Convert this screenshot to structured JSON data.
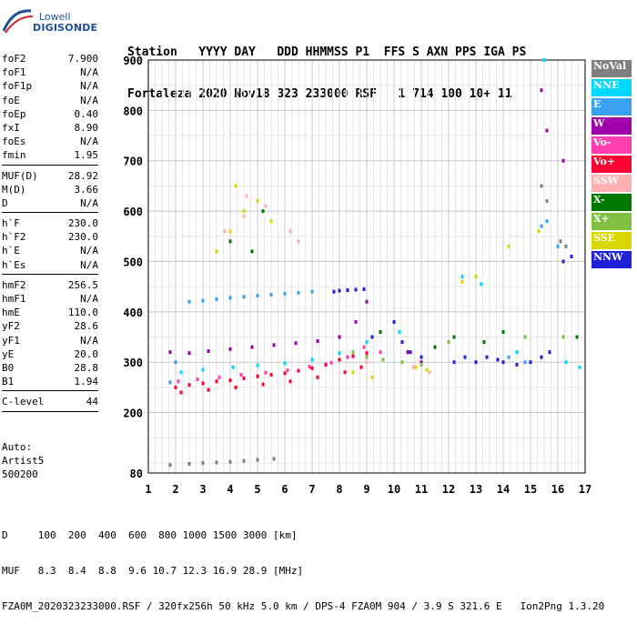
{
  "logo": {
    "line1": "Lowell",
    "line2": "DIGISONDE"
  },
  "header": {
    "line1": "Station   YYYY DAY   DDD HHMMSS P1  FFS S AXN PPS IGA PS",
    "line2": "Fortaleza 2020 Nov18 323 233000 RSF   1 714 100 10+ 11"
  },
  "params_groups": [
    [
      [
        "foF2",
        "7.900"
      ],
      [
        "foF1",
        "N/A"
      ],
      [
        "foF1p",
        "N/A"
      ],
      [
        "foE",
        "N/A"
      ],
      [
        "foEp",
        "0.40"
      ],
      [
        "fxI",
        "8.90"
      ],
      [
        "foEs",
        "N/A"
      ],
      [
        "fmin",
        "1.95"
      ]
    ],
    [
      [
        "MUF(D)",
        "28.92"
      ],
      [
        "M(D)",
        "3.66"
      ],
      [
        "D",
        "N/A"
      ]
    ],
    [
      [
        "h`F",
        "230.0"
      ],
      [
        "h`F2",
        "230.0"
      ],
      [
        "h`E",
        "N/A"
      ],
      [
        "h`Es",
        "N/A"
      ]
    ],
    [
      [
        "hmF2",
        "256.5"
      ],
      [
        "hmF1",
        "N/A"
      ],
      [
        "hmE",
        "110.0"
      ],
      [
        "yF2",
        "28.6"
      ],
      [
        "yF1",
        "N/A"
      ],
      [
        "yE",
        "20.0"
      ],
      [
        "B0",
        "28.8"
      ],
      [
        "B1",
        "1.94"
      ]
    ],
    [
      [
        "C-level",
        "44"
      ]
    ]
  ],
  "extra": {
    "line1": "Auto:",
    "line2": "Artist5",
    "line3": "500200"
  },
  "legend": [
    {
      "label": "NoVal",
      "color": "#7f7f7f"
    },
    {
      "label": "NNE",
      "color": "#00d8ff"
    },
    {
      "label": "E",
      "color": "#3aa0f0"
    },
    {
      "label": "W",
      "color": "#a000a8"
    },
    {
      "label": "Vo-",
      "color": "#ff3fb0"
    },
    {
      "label": "Vo+",
      "color": "#ff0030"
    },
    {
      "label": "SSW",
      "color": "#ffb0b0"
    },
    {
      "label": "X-",
      "color": "#007800"
    },
    {
      "label": "X+",
      "color": "#80c040"
    },
    {
      "label": "SSE",
      "color": "#d8d800"
    },
    {
      "label": "NNW",
      "color": "#2020d8"
    }
  ],
  "chart_data": {
    "type": "scatter",
    "xlim": [
      1,
      17
    ],
    "ylim": [
      80,
      900
    ],
    "xticks": [
      1,
      2,
      3,
      4,
      5,
      6,
      7,
      8,
      9,
      10,
      11,
      12,
      13,
      14,
      15,
      16,
      17
    ],
    "yticks": [
      80,
      200,
      300,
      400,
      500,
      600,
      700,
      800,
      900
    ],
    "grid": true,
    "series": [
      {
        "name": "Vo+",
        "color": "#ff0030",
        "points": [
          [
            2.0,
            250
          ],
          [
            2.5,
            255
          ],
          [
            3.0,
            258
          ],
          [
            3.5,
            262
          ],
          [
            4.0,
            264
          ],
          [
            4.5,
            268
          ],
          [
            5.0,
            272
          ],
          [
            5.5,
            275
          ],
          [
            6.0,
            278
          ],
          [
            6.5,
            283
          ],
          [
            7.0,
            288
          ],
          [
            7.5,
            295
          ],
          [
            8.0,
            305
          ],
          [
            8.5,
            312
          ],
          [
            9.0,
            318
          ],
          [
            2.2,
            240
          ],
          [
            3.2,
            245
          ],
          [
            4.2,
            250
          ],
          [
            5.2,
            256
          ],
          [
            6.2,
            262
          ],
          [
            7.2,
            270
          ],
          [
            8.2,
            280
          ],
          [
            8.8,
            290
          ]
        ]
      },
      {
        "name": "Vo-",
        "color": "#ff3fb0",
        "points": [
          [
            2.1,
            262
          ],
          [
            2.8,
            266
          ],
          [
            3.6,
            270
          ],
          [
            4.4,
            275
          ],
          [
            5.3,
            279
          ],
          [
            6.1,
            284
          ],
          [
            6.9,
            291
          ],
          [
            7.7,
            299
          ],
          [
            8.3,
            310
          ],
          [
            8.9,
            330
          ],
          [
            9.5,
            320
          ]
        ]
      },
      {
        "name": "W",
        "color": "#a000a8",
        "points": [
          [
            1.8,
            320
          ],
          [
            2.5,
            318
          ],
          [
            3.2,
            322
          ],
          [
            4.0,
            326
          ],
          [
            4.8,
            330
          ],
          [
            5.6,
            334
          ],
          [
            6.4,
            338
          ],
          [
            7.2,
            342
          ],
          [
            8.0,
            350
          ],
          [
            8.6,
            380
          ],
          [
            9.0,
            420
          ],
          [
            15.4,
            840
          ],
          [
            15.6,
            760
          ],
          [
            16.2,
            700
          ],
          [
            10.5,
            320
          ],
          [
            11.0,
            300
          ]
        ]
      },
      {
        "name": "NNE",
        "color": "#00d8ff",
        "points": [
          [
            2.2,
            280
          ],
          [
            3.0,
            285
          ],
          [
            4.1,
            290
          ],
          [
            5.0,
            294
          ],
          [
            6.0,
            298
          ],
          [
            7.0,
            305
          ],
          [
            8.0,
            318
          ],
          [
            9.0,
            340
          ],
          [
            10.2,
            360
          ],
          [
            12.5,
            470
          ],
          [
            13.2,
            455
          ],
          [
            14.5,
            320
          ],
          [
            15.5,
            900
          ],
          [
            16.3,
            300
          ],
          [
            16.8,
            290
          ]
        ]
      },
      {
        "name": "E",
        "color": "#3aa0f0",
        "points": [
          [
            2.5,
            420
          ],
          [
            3.0,
            422
          ],
          [
            3.5,
            425
          ],
          [
            4.0,
            428
          ],
          [
            4.5,
            430
          ],
          [
            5.0,
            432
          ],
          [
            5.5,
            434
          ],
          [
            6.0,
            436
          ],
          [
            6.5,
            438
          ],
          [
            7.0,
            440
          ],
          [
            2.0,
            300
          ],
          [
            1.8,
            260
          ],
          [
            15.4,
            570
          ],
          [
            15.6,
            580
          ],
          [
            16.0,
            530
          ],
          [
            14.2,
            310
          ],
          [
            14.8,
            300
          ]
        ]
      },
      {
        "name": "NNW",
        "color": "#2020d8",
        "points": [
          [
            7.8,
            440
          ],
          [
            8.0,
            442
          ],
          [
            8.3,
            443
          ],
          [
            8.6,
            444
          ],
          [
            8.9,
            445
          ],
          [
            10.0,
            380
          ],
          [
            10.3,
            340
          ],
          [
            10.6,
            320
          ],
          [
            11.0,
            310
          ],
          [
            12.2,
            300
          ],
          [
            12.6,
            310
          ],
          [
            13.0,
            300
          ],
          [
            13.4,
            310
          ],
          [
            13.8,
            305
          ],
          [
            14.0,
            300
          ],
          [
            14.5,
            295
          ],
          [
            15.0,
            300
          ],
          [
            15.4,
            310
          ],
          [
            15.7,
            320
          ],
          [
            16.2,
            500
          ],
          [
            16.5,
            510
          ],
          [
            9.2,
            350
          ]
        ]
      },
      {
        "name": "SSE",
        "color": "#d8d800",
        "points": [
          [
            3.5,
            520
          ],
          [
            4.0,
            560
          ],
          [
            4.5,
            600
          ],
          [
            5.0,
            620
          ],
          [
            5.5,
            580
          ],
          [
            4.2,
            650
          ],
          [
            8.5,
            280
          ],
          [
            9.2,
            270
          ],
          [
            10.8,
            290
          ],
          [
            11.2,
            285
          ],
          [
            12.5,
            460
          ],
          [
            13.0,
            470
          ],
          [
            14.2,
            530
          ],
          [
            15.3,
            560
          ]
        ]
      },
      {
        "name": "X-",
        "color": "#007800",
        "points": [
          [
            4.0,
            540
          ],
          [
            4.8,
            520
          ],
          [
            5.2,
            600
          ],
          [
            11.5,
            330
          ],
          [
            12.2,
            350
          ],
          [
            13.3,
            340
          ],
          [
            16.7,
            350
          ],
          [
            14.0,
            360
          ],
          [
            9.5,
            360
          ]
        ]
      },
      {
        "name": "X+",
        "color": "#80c040",
        "points": [
          [
            8.5,
            320
          ],
          [
            9.0,
            310
          ],
          [
            9.6,
            305
          ],
          [
            10.3,
            300
          ],
          [
            11.0,
            295
          ],
          [
            12.0,
            340
          ],
          [
            14.8,
            350
          ],
          [
            16.2,
            350
          ]
        ]
      },
      {
        "name": "SSW",
        "color": "#ffb0b0",
        "points": [
          [
            3.8,
            560
          ],
          [
            4.5,
            590
          ],
          [
            5.3,
            610
          ],
          [
            6.2,
            560
          ],
          [
            6.5,
            540
          ],
          [
            4.6,
            630
          ],
          [
            9.0,
            300
          ],
          [
            10.7,
            290
          ],
          [
            11.3,
            280
          ]
        ]
      },
      {
        "name": "NoVal",
        "color": "#7f7f7f",
        "points": [
          [
            1.8,
            96
          ],
          [
            2.5,
            98
          ],
          [
            3.0,
            100
          ],
          [
            3.5,
            101
          ],
          [
            4.0,
            102
          ],
          [
            4.5,
            104
          ],
          [
            5.0,
            106
          ],
          [
            5.6,
            108
          ],
          [
            15.4,
            650
          ],
          [
            15.6,
            620
          ],
          [
            16.1,
            540
          ],
          [
            16.3,
            530
          ]
        ]
      }
    ]
  },
  "bottom": {
    "line1": "D     100  200  400  600  800 1000 1500 3000 [km]",
    "line2": "MUF   8.3  8.4  8.8  9.6 10.7 12.3 16.9 28.9 [MHz]",
    "line3": "FZA0M_2020323233000.RSF / 320fx256h 50 kHz 5.0 km / DPS-4 FZA0M 904 / 3.9 S 321.6 E   Ion2Png 1.3.20"
  }
}
